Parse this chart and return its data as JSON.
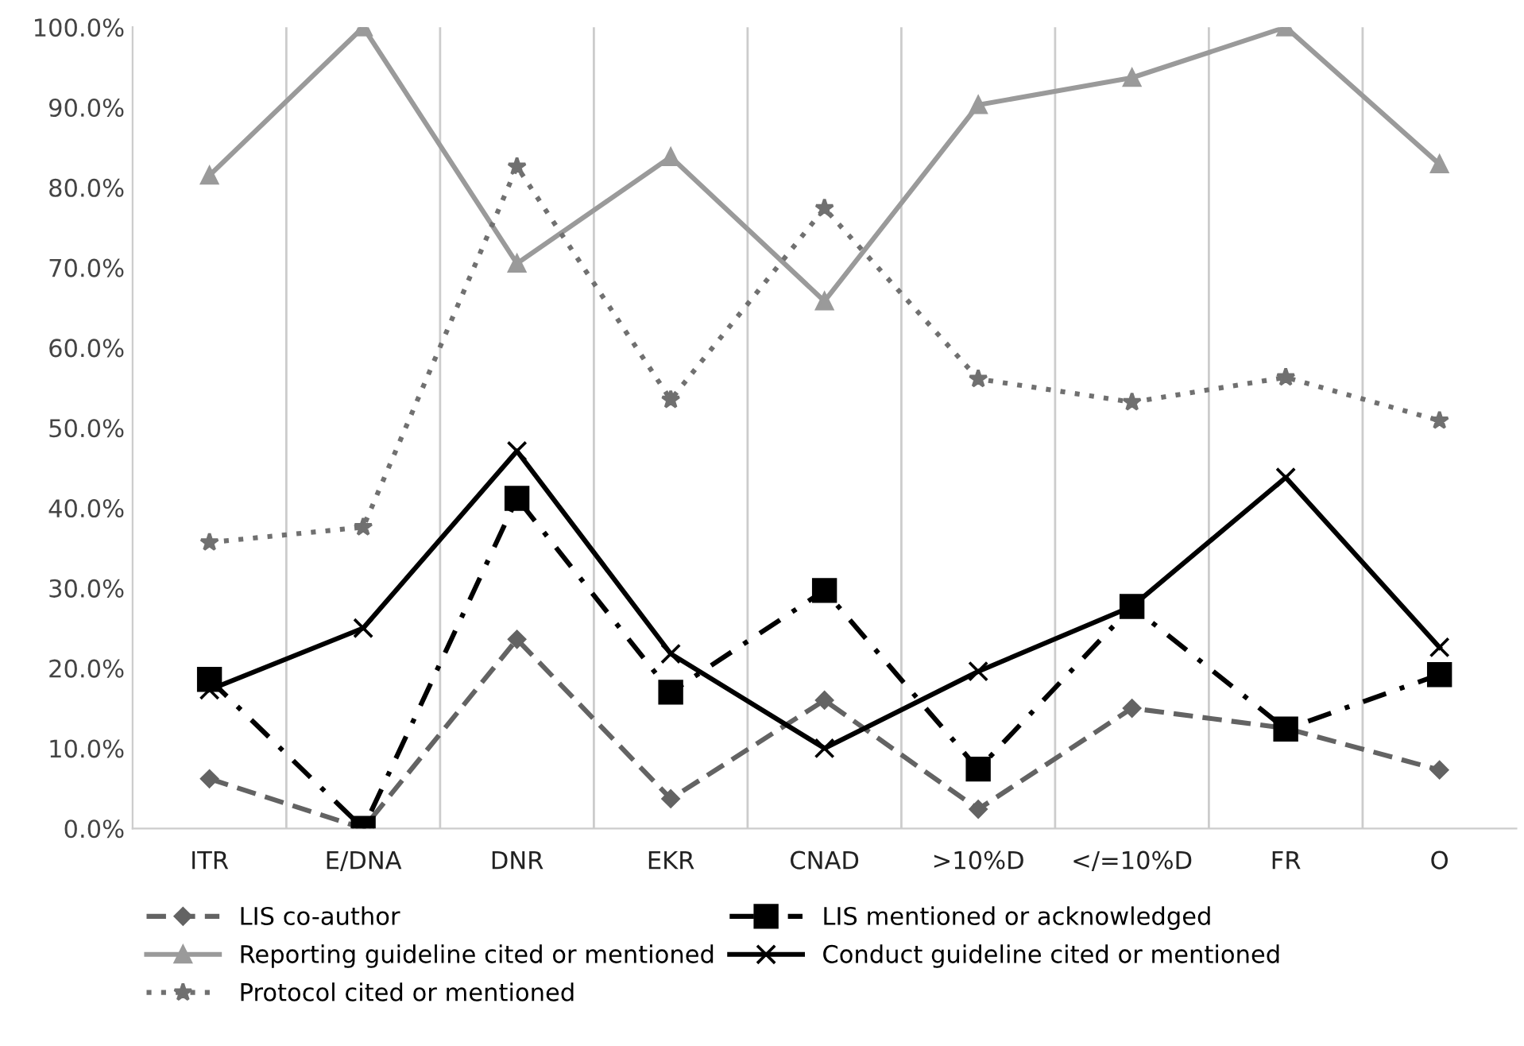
{
  "chart_data": {
    "type": "line",
    "categories": [
      "ITR",
      "E/DNA",
      "DNR",
      "EKR",
      "CNAD",
      ">10%D",
      "</=10%D",
      "FR",
      "O"
    ],
    "series": [
      {
        "name": "LIS co-author",
        "color": "#636363",
        "marker": "diamond",
        "line_style": "dashed",
        "values": [
          6.2,
          0,
          23.6,
          3.7,
          16.0,
          2.4,
          15.0,
          12.5,
          7.3
        ]
      },
      {
        "name": "LIS mentioned or acknowledged",
        "color": "#000000",
        "marker": "square",
        "line_style": "dashdot",
        "values": [
          18.6,
          0,
          41.2,
          17.0,
          29.7,
          7.4,
          27.7,
          12.4,
          19.2
        ]
      },
      {
        "name": "Reporting guideline cited or mentioned",
        "color": "#9a9a9a",
        "marker": "triangle",
        "line_style": "solid",
        "values": [
          81.5,
          100,
          70.5,
          83.8,
          65.8,
          90.3,
          93.7,
          100,
          82.9
        ]
      },
      {
        "name": "Conduct guideline cited or mentioned",
        "color": "#000000",
        "marker": "cross",
        "line_style": "solid",
        "values": [
          17.3,
          25.0,
          47.1,
          21.8,
          10.0,
          19.6,
          27.7,
          43.8,
          22.6
        ]
      },
      {
        "name": "Protocol cited or mentioned",
        "color": "#707070",
        "marker": "star",
        "line_style": "dotted",
        "values": [
          35.7,
          37.6,
          82.6,
          53.5,
          77.4,
          56.1,
          53.2,
          56.3,
          50.9
        ]
      }
    ],
    "ylim": [
      0,
      100
    ],
    "yticks": [
      {
        "value": 0,
        "label": "0.0%"
      },
      {
        "value": 10,
        "label": "10.0%"
      },
      {
        "value": 20,
        "label": "20.0%"
      },
      {
        "value": 30,
        "label": "30.0%"
      },
      {
        "value": 40,
        "label": "40.0%"
      },
      {
        "value": 50,
        "label": "50.0%"
      },
      {
        "value": 60,
        "label": "60.0%"
      },
      {
        "value": 70,
        "label": "70.0%"
      },
      {
        "value": 80,
        "label": "80.0%"
      },
      {
        "value": 90,
        "label": "90.0%"
      },
      {
        "value": 100,
        "label": "100.0%"
      }
    ],
    "grid": "x",
    "legend": "bottom"
  }
}
